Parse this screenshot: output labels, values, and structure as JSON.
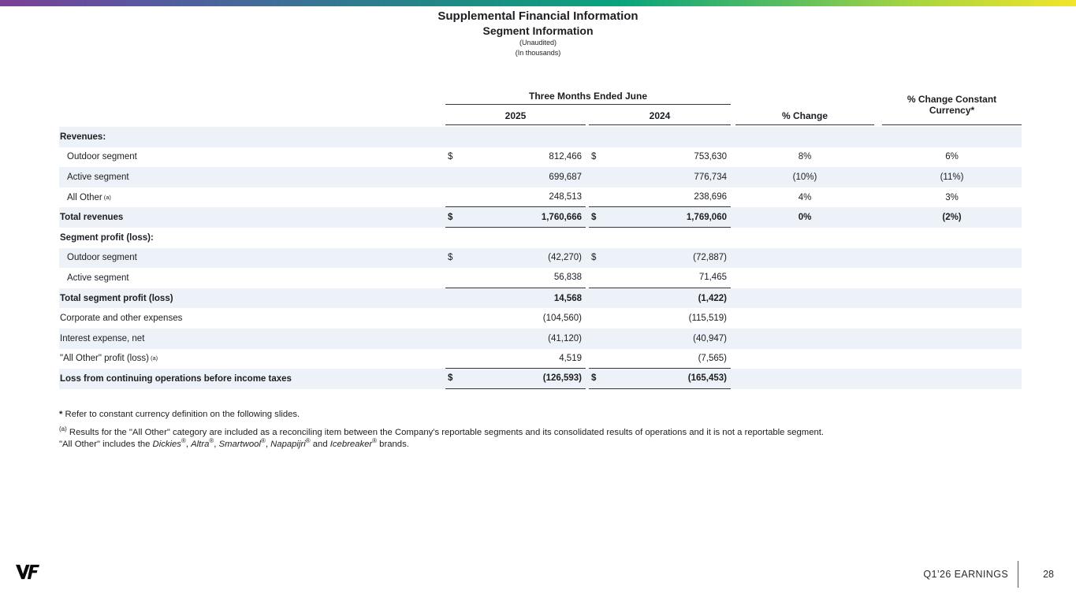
{
  "page": {
    "title_line1": "Supplemental Financial Information",
    "title_line2": "Segment Information",
    "subtitle_unaudited": "(Unaudited)",
    "subtitle_thousands": "(In thousands)"
  },
  "table": {
    "span_header": "Three Months Ended June",
    "col_2025": "2025",
    "col_2024": "2024",
    "col_pct_change": "% Change",
    "col_cc_line1": "% Change Constant",
    "col_cc_line2": "Currency*",
    "rows": [
      {
        "label": "Revenues:",
        "style": "section",
        "shaded": true
      },
      {
        "label": "Outdoor segment",
        "indent": true,
        "d25": "$",
        "v25": "812,466",
        "d24": "$",
        "v24": "753,630",
        "pct": "8%",
        "cc": "6%"
      },
      {
        "label": "Active segment",
        "indent": true,
        "v25": "699,687",
        "v24": "776,734",
        "pct": "(10%)",
        "cc": "(11%)",
        "shaded": true
      },
      {
        "label": "All Other",
        "sup": "(a)",
        "indent": true,
        "v25": "248,513",
        "v24": "238,696",
        "pct": "4%",
        "cc": "3%",
        "rule": true
      },
      {
        "label": "Total revenues",
        "style": "total",
        "d25": "$",
        "v25": "1,760,666",
        "d24": "$",
        "v24": "1,769,060",
        "pct": "0%",
        "cc": "(2%)",
        "shaded": true,
        "rule": true
      },
      {
        "label": "Segment profit (loss):",
        "style": "section"
      },
      {
        "label": "Outdoor segment",
        "indent": true,
        "d25": "$",
        "v25": "(42,270)",
        "d24": "$",
        "v24": "(72,887)",
        "shaded": true
      },
      {
        "label": "Active segment",
        "indent": true,
        "v25": "56,838",
        "v24": "71,465",
        "rule": true
      },
      {
        "label": "Total segment profit (loss)",
        "style": "total",
        "v25": "14,568",
        "v24": "(1,422)",
        "shaded": true
      },
      {
        "label": "Corporate and other expenses",
        "v25": "(104,560)",
        "v24": "(115,519)"
      },
      {
        "label": "Interest expense, net",
        "v25": "(41,120)",
        "v24": "(40,947)",
        "shaded": true
      },
      {
        "label": "\"All Other\" profit (loss)",
        "sup": "(a)",
        "v25": "4,519",
        "v24": "(7,565)",
        "rule": true
      },
      {
        "label": "Loss from continuing operations before income taxes",
        "style": "total",
        "d25": "$",
        "v25": "(126,593)",
        "d24": "$",
        "v24": "(165,453)",
        "shaded": true,
        "rule": true
      }
    ]
  },
  "footnotes": {
    "star_marker": "*",
    "star_text": "Refer to constant currency definition on the following slides.",
    "a_marker": "(a)",
    "a_line1": "Results for the \"All Other\" category are included as a reconciling item between the Company's reportable segments and its consolidated results of operations and it is not a reportable segment.",
    "a_line2_segments": [
      {
        "text": "\"All Other\" includes the "
      },
      {
        "text": "Dickies",
        "italic": true
      },
      {
        "text": "®",
        "sup": true
      },
      {
        "text": ", "
      },
      {
        "text": "Altra",
        "italic": true
      },
      {
        "text": "®",
        "sup": true
      },
      {
        "text": ", "
      },
      {
        "text": "Smartwool",
        "italic": true
      },
      {
        "text": "®",
        "sup": true
      },
      {
        "text": ", "
      },
      {
        "text": "Napapijri",
        "italic": true
      },
      {
        "text": "®",
        "sup": true
      },
      {
        "text": " and "
      },
      {
        "text": "Icebreaker",
        "italic": true
      },
      {
        "text": "®",
        "sup": true
      },
      {
        "text": " brands."
      }
    ]
  },
  "footer": {
    "logo_name": "VF",
    "earnings_label": "Q1’26 EARNINGS",
    "page_number": "28"
  },
  "colors": {
    "row_shade": "#edf1f8",
    "rule": "#33373d",
    "text": "#1c1e21",
    "gradient": [
      "#7d3f98 0%",
      "#565a9f 14%",
      "#3a7296 28%",
      "#1f8a84 42%",
      "#0aa47d 58%",
      "#53bc63 72%",
      "#a8d540 85%",
      "#f3e52b 100%"
    ]
  }
}
